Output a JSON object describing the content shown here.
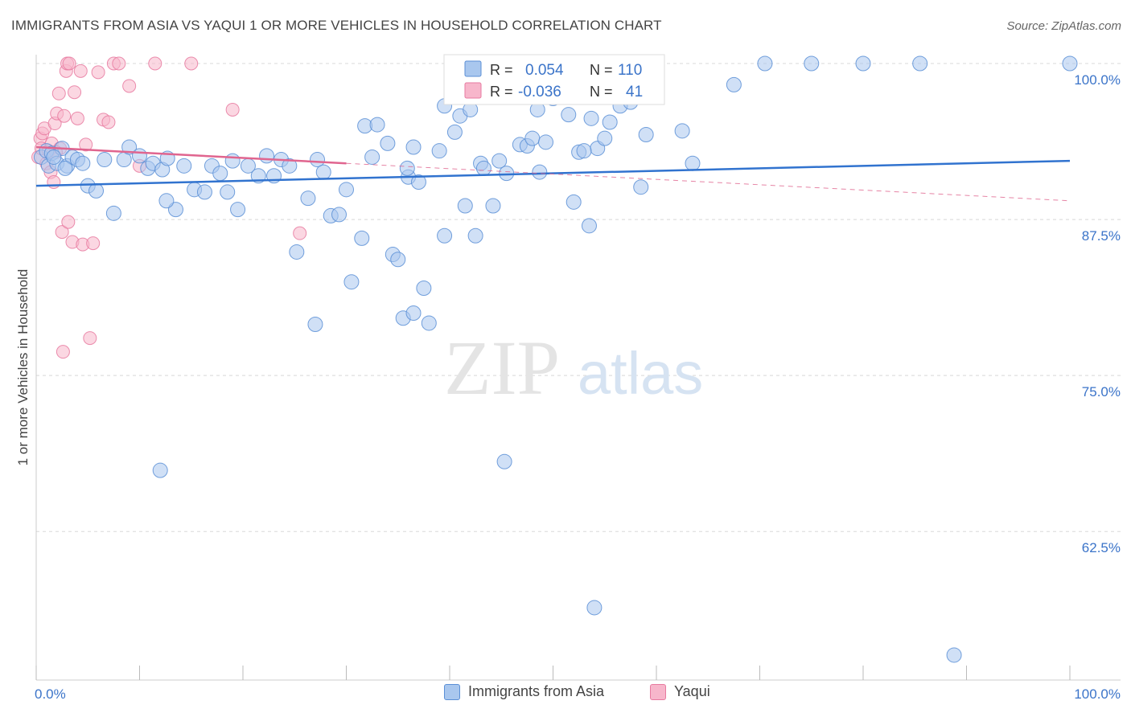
{
  "title": "IMMIGRANTS FROM ASIA VS YAQUI 1 OR MORE VEHICLES IN HOUSEHOLD CORRELATION CHART",
  "source": "Source: ZipAtlas.com",
  "watermark": {
    "zip": "ZIP",
    "atlas": "atlas"
  },
  "colors": {
    "blue_fill": "#a9c7ee",
    "blue_stroke": "#5b8fd6",
    "blue_line": "#3173cf",
    "pink_fill": "#f7b6cb",
    "pink_stroke": "#e77aa0",
    "pink_line": "#e0658f",
    "axis_text": "#3b74c9",
    "grid": "#d8d8d8"
  },
  "legend": {
    "rows": [
      {
        "r_label": "R =",
        "r_value": "0.054",
        "n_label": "N =",
        "n_value": "110"
      },
      {
        "r_label": "R =",
        "r_value": "-0.036",
        "n_label": "N =",
        "n_value": "41"
      }
    ]
  },
  "bottom_legend": [
    "Immigrants from Asia",
    "Yaqui"
  ],
  "chart_data": {
    "type": "scatter",
    "title": "IMMIGRANTS FROM ASIA VS YAQUI 1 OR MORE VEHICLES IN HOUSEHOLD CORRELATION CHART",
    "xlabel": "",
    "ylabel": "1 or more Vehicles in Household",
    "xlim": [
      0,
      100
    ],
    "ylim": [
      50.6,
      100
    ],
    "x_tick_labels": [
      "0.0%",
      "100.0%"
    ],
    "y_ticks": [
      62.5,
      75.0,
      87.5,
      100.0
    ],
    "y_tick_labels": [
      "62.5%",
      "75.0%",
      "87.5%",
      "100.0%"
    ],
    "grid": true,
    "legend_position": "top-center",
    "series": [
      {
        "name": "Immigrants from Asia",
        "r": 0.054,
        "n": 110,
        "trend": {
          "x": [
            0,
            100
          ],
          "y": [
            90.2,
            92.2
          ]
        },
        "points": [
          [
            0.5,
            92.5
          ],
          [
            1.0,
            93.0
          ],
          [
            1.2,
            91.8
          ],
          [
            1.5,
            92.8
          ],
          [
            2.0,
            92.0
          ],
          [
            2.5,
            93.2
          ],
          [
            3.0,
            91.8
          ],
          [
            3.5,
            92.5
          ],
          [
            4.0,
            92.3
          ],
          [
            4.5,
            92.0
          ],
          [
            5.0,
            90.2
          ],
          [
            5.8,
            89.8
          ],
          [
            7.5,
            88.0
          ],
          [
            8.5,
            92.3
          ],
          [
            9.0,
            93.3
          ],
          [
            10.0,
            92.6
          ],
          [
            10.8,
            91.6
          ],
          [
            11.3,
            92.0
          ],
          [
            12.2,
            91.5
          ],
          [
            12.7,
            92.4
          ],
          [
            13.5,
            88.3
          ],
          [
            14.3,
            91.8
          ],
          [
            15.3,
            89.9
          ],
          [
            16.3,
            89.7
          ],
          [
            17.0,
            91.8
          ],
          [
            17.8,
            91.2
          ],
          [
            18.5,
            89.7
          ],
          [
            19.0,
            92.2
          ],
          [
            19.5,
            88.3
          ],
          [
            20.5,
            91.8
          ],
          [
            21.5,
            91.0
          ],
          [
            22.3,
            92.6
          ],
          [
            23.0,
            91.0
          ],
          [
            23.7,
            92.3
          ],
          [
            24.5,
            91.8
          ],
          [
            25.2,
            84.9
          ],
          [
            26.3,
            89.2
          ],
          [
            27.2,
            92.3
          ],
          [
            27.8,
            91.3
          ],
          [
            28.5,
            87.8
          ],
          [
            29.3,
            87.9
          ],
          [
            30.0,
            89.9
          ],
          [
            31.5,
            86.0
          ],
          [
            31.8,
            95.0
          ],
          [
            32.5,
            92.5
          ],
          [
            33.0,
            95.1
          ],
          [
            34.0,
            93.6
          ],
          [
            34.5,
            84.7
          ],
          [
            35.0,
            84.3
          ],
          [
            35.5,
            79.6
          ],
          [
            36.0,
            90.9
          ],
          [
            36.5,
            93.3
          ],
          [
            37.5,
            82.0
          ],
          [
            38.0,
            79.2
          ],
          [
            39.0,
            93.0
          ],
          [
            39.5,
            86.2
          ],
          [
            40.5,
            94.5
          ],
          [
            41.0,
            95.8
          ],
          [
            41.5,
            88.6
          ],
          [
            42.0,
            96.3
          ],
          [
            42.5,
            86.2
          ],
          [
            43.0,
            92.0
          ],
          [
            43.3,
            91.6
          ],
          [
            44.2,
            88.6
          ],
          [
            44.8,
            92.2
          ],
          [
            45.5,
            91.2
          ],
          [
            46.8,
            93.5
          ],
          [
            47.5,
            93.4
          ],
          [
            48.0,
            94.0
          ],
          [
            48.5,
            96.3
          ],
          [
            49.3,
            93.7
          ],
          [
            50.0,
            97.2
          ],
          [
            51.5,
            95.9
          ],
          [
            52.0,
            88.9
          ],
          [
            52.5,
            92.9
          ],
          [
            53.7,
            95.6
          ],
          [
            54.3,
            93.2
          ],
          [
            55.0,
            94.0
          ],
          [
            55.5,
            95.3
          ],
          [
            56.5,
            96.6
          ],
          [
            57.5,
            96.9
          ],
          [
            58.5,
            90.1
          ],
          [
            59.0,
            94.3
          ],
          [
            62.5,
            94.6
          ],
          [
            63.5,
            92.0
          ],
          [
            67.5,
            98.3
          ],
          [
            70.5,
            100.0
          ],
          [
            75.0,
            100.0
          ],
          [
            80.0,
            100.0
          ],
          [
            85.5,
            100.0
          ],
          [
            100.0,
            100.0
          ],
          [
            58.0,
            100.0
          ],
          [
            45.0,
            100.0
          ],
          [
            27.0,
            79.1
          ],
          [
            53.5,
            87.0
          ],
          [
            54.0,
            56.4
          ],
          [
            12.0,
            67.4
          ],
          [
            36.5,
            80.0
          ],
          [
            88.8,
            52.6
          ],
          [
            1.7,
            92.5
          ],
          [
            2.8,
            91.6
          ],
          [
            6.6,
            92.3
          ],
          [
            12.6,
            89.0
          ],
          [
            30.5,
            82.5
          ],
          [
            39.5,
            96.6
          ],
          [
            48.7,
            91.3
          ],
          [
            53.0,
            93.0
          ],
          [
            37.0,
            90.5
          ],
          [
            45.3,
            68.1
          ],
          [
            35.9,
            91.6
          ],
          [
            44.9,
            98.1
          ]
        ]
      },
      {
        "name": "Yaqui",
        "r": -0.036,
        "n": 41,
        "trend": {
          "x": [
            0,
            30
          ],
          "y": [
            93.3,
            92.0
          ]
        },
        "trend_extension": {
          "x": [
            30,
            100
          ],
          "y": [
            92.0,
            89.0
          ]
        },
        "points": [
          [
            0.2,
            92.5
          ],
          [
            0.4,
            94.0
          ],
          [
            0.5,
            93.2
          ],
          [
            0.6,
            94.4
          ],
          [
            0.8,
            94.8
          ],
          [
            1.0,
            92.0
          ],
          [
            1.2,
            93.0
          ],
          [
            1.4,
            91.3
          ],
          [
            1.5,
            93.6
          ],
          [
            1.7,
            90.5
          ],
          [
            1.8,
            95.2
          ],
          [
            2.0,
            96.0
          ],
          [
            2.2,
            97.6
          ],
          [
            2.3,
            93.2
          ],
          [
            2.5,
            86.5
          ],
          [
            2.7,
            95.8
          ],
          [
            2.9,
            99.4
          ],
          [
            3.0,
            100.0
          ],
          [
            3.2,
            100.0
          ],
          [
            3.5,
            85.7
          ],
          [
            3.7,
            97.7
          ],
          [
            4.0,
            95.6
          ],
          [
            4.3,
            99.4
          ],
          [
            4.5,
            85.5
          ],
          [
            4.8,
            93.5
          ],
          [
            5.2,
            78.0
          ],
          [
            5.5,
            85.6
          ],
          [
            6.0,
            99.3
          ],
          [
            6.5,
            95.5
          ],
          [
            7.0,
            95.3
          ],
          [
            7.5,
            100.0
          ],
          [
            8.0,
            100.0
          ],
          [
            9.0,
            98.2
          ],
          [
            10.0,
            91.8
          ],
          [
            11.5,
            100.0
          ],
          [
            15.0,
            100.0
          ],
          [
            19.0,
            96.3
          ],
          [
            25.5,
            86.4
          ],
          [
            2.6,
            76.9
          ],
          [
            3.1,
            87.3
          ],
          [
            1.9,
            92.9
          ]
        ]
      }
    ]
  }
}
